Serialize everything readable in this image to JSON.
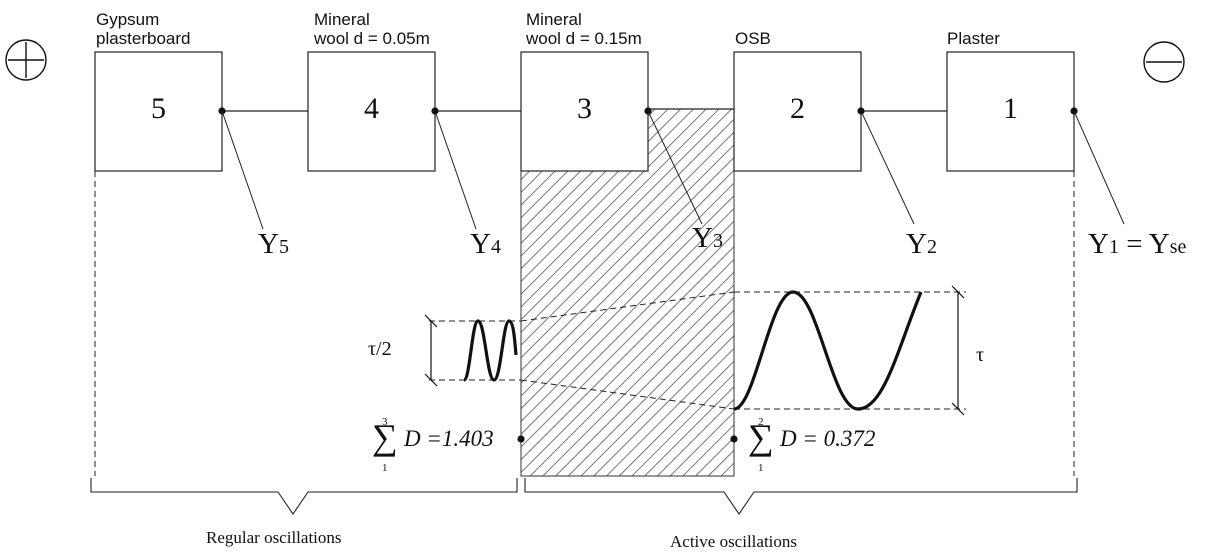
{
  "components": [
    {
      "number": "5",
      "material": [
        "Gypsum",
        "plasterboard"
      ],
      "admittance": "Y",
      "admittance_sub": "5"
    },
    {
      "number": "4",
      "material": [
        "Mineral",
        "wool d = 0.05m"
      ],
      "admittance": "Y",
      "admittance_sub": "4"
    },
    {
      "number": "3",
      "material": [
        "Mineral",
        "wool d = 0.15m"
      ],
      "admittance": "Y",
      "admittance_sub": "3"
    },
    {
      "number": "2",
      "material": [
        "OSB"
      ],
      "admittance": "Y",
      "admittance_sub": "2"
    },
    {
      "number": "1",
      "material": [
        "Plaster"
      ],
      "admittance": "Y",
      "admittance_sub": "1",
      "admittance_suffix": " = Y",
      "admittance_suffix_sub": "se"
    }
  ],
  "terminals": {
    "left": "+",
    "right": "−"
  },
  "sums": [
    {
      "upper": "3",
      "lower": "1",
      "expression": "D =1.403"
    },
    {
      "upper": "2",
      "lower": "1",
      "expression": "D = 0.372"
    }
  ],
  "amplitudes": {
    "small": "τ/2",
    "large": "τ"
  },
  "regions": {
    "regular": "Regular oscillations",
    "active": "Active oscillations"
  }
}
